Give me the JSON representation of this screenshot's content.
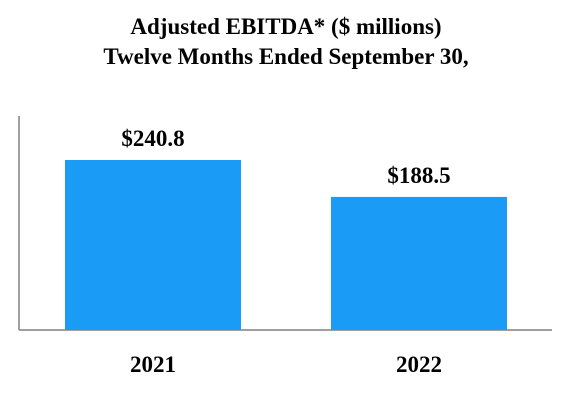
{
  "chart_data": {
    "type": "bar",
    "title": "Adjusted EBITDA* ($ millions)",
    "subtitle": "Twelve Months Ended September 30,",
    "xlabel": "",
    "ylabel": "",
    "categories": [
      "2021",
      "2022"
    ],
    "values": [
      240.8,
      188.5
    ],
    "value_labels": [
      "$240.8",
      "$188.5"
    ],
    "ylim": [
      0,
      240.8
    ],
    "grid": false,
    "legend": "none",
    "bar_color": "#1a9bf5",
    "axis_color": "#808080"
  }
}
